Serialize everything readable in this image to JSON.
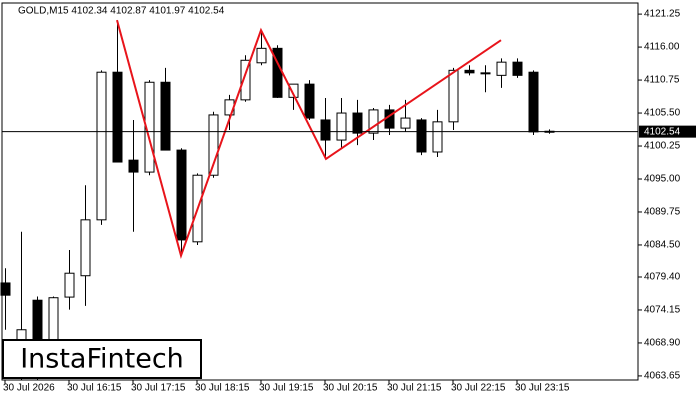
{
  "chart_data": {
    "type": "candlestick",
    "title": "GOLD,M15  4102.34 4102.87 4101.97 4102.54",
    "watermark": "InstaFintech",
    "categories": [
      "30 Jul 2026",
      null,
      null,
      null,
      "30 Jul 16:15",
      null,
      null,
      null,
      "30 Jul 17:15",
      null,
      null,
      null,
      "30 Jul 18:15",
      null,
      null,
      null,
      "30 Jul 19:15",
      null,
      null,
      null,
      "30 Jul 20:15",
      null,
      null,
      null,
      "30 Jul 21:15",
      null,
      null,
      null,
      "30 Jul 22:15",
      null,
      null,
      null,
      "30 Jul 23:15",
      null,
      null
    ],
    "open": [
      4078.45,
      4068.6,
      4075.7,
      4069.4,
      4076.2,
      4079.6,
      4088.5,
      4112.0,
      4098.0,
      4096.1,
      4110.4,
      4099.6,
      4085.0,
      4095.6,
      4105.2,
      4107.6,
      4113.5,
      4115.8,
      4108.0,
      4110.1,
      4104.4,
      4101.2,
      4105.5,
      4102.3,
      4106.0,
      4103.1,
      4104.4,
      4099.3,
      4104.1,
      4112.3,
      4111.9,
      4111.5,
      4113.6,
      4112.0,
      4102.6
    ],
    "high": [
      4080.8,
      4086.6,
      4076.3,
      4076.3,
      4083.7,
      4094.0,
      4112.3,
      4120.3,
      4104.4,
      4110.75,
      4112.7,
      4099.9,
      4095.9,
      4105.7,
      4108.4,
      4114.7,
      4118.7,
      4116.3,
      4110.1,
      4110.75,
      4107.9,
      4107.9,
      4107.6,
      4106.3,
      4106.8,
      4107.6,
      4104.7,
      4106.0,
      4112.7,
      4113.1,
      4113.1,
      4114.2,
      4114.2,
      4112.3,
      4102.9
    ],
    "low": [
      4071.0,
      4063.0,
      4063.0,
      4067.8,
      4074.2,
      4074.8,
      4087.7,
      4097.7,
      4086.6,
      4095.6,
      4099.6,
      4082.9,
      4084.5,
      4095.2,
      4102.8,
      4107.3,
      4113.1,
      4107.9,
      4106.0,
      4104.4,
      4098.3,
      4099.9,
      4100.4,
      4101.2,
      4102.0,
      4102.5,
      4098.8,
      4098.5,
      4102.8,
      4111.5,
      4108.8,
      4109.5,
      4111.1,
      4102.0,
      4102.2
    ],
    "close": [
      4076.5,
      4071.0,
      4063.3,
      4076.1,
      4080.0,
      4088.5,
      4112.0,
      4097.7,
      4096.1,
      4110.4,
      4099.6,
      4085.3,
      4095.6,
      4105.2,
      4107.6,
      4113.9,
      4115.8,
      4108.0,
      4110.1,
      4104.7,
      4101.2,
      4105.5,
      4102.3,
      4106.0,
      4103.1,
      4104.7,
      4099.3,
      4104.1,
      4112.3,
      4111.9,
      4111.8,
      4113.6,
      4111.5,
      4102.5,
      4102.54
    ],
    "up_color": "#ffffff",
    "down_color": "#000000",
    "last_price": 4102.54,
    "pattern": {
      "color": "#e8141b",
      "x": [
        7,
        11,
        16,
        20.06,
        31
      ],
      "values": [
        4120.3,
        4082.8,
        4118.7,
        4098.2,
        4117.1
      ]
    },
    "ylim": [
      4063.0,
      4122.7
    ],
    "yticks": [
      4121.25,
      {
        "value": 4116.0,
        "label": "4116.00"
      },
      4110.75,
      {
        "value": 4105.5,
        "label": "4105.50"
      },
      4100.25,
      {
        "value": 4095.0,
        "label": "4095.00"
      },
      4089.75,
      {
        "value": 4084.5,
        "label": "4084.50"
      },
      {
        "value": 4079.4,
        "label": "4079.40"
      },
      4074.15,
      {
        "value": 4068.9,
        "label": "4068.90"
      },
      4063.65
    ]
  }
}
